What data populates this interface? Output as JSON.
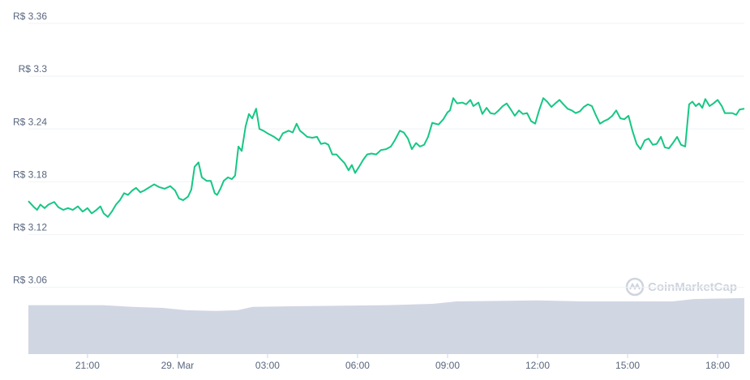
{
  "chart_data": {
    "type": "line",
    "yticks": [
      {
        "value": 3.06,
        "label": "R$ 3.06"
      },
      {
        "value": 3.12,
        "label": "R$ 3.12"
      },
      {
        "value": 3.18,
        "label": "R$ 3.18"
      },
      {
        "value": 3.24,
        "label": "R$ 3.24"
      },
      {
        "value": 3.3,
        "label": "R$ 3.3"
      },
      {
        "value": 3.36,
        "label": "R$ 3.36"
      }
    ],
    "ylim": [
      2.985,
      3.37
    ],
    "xlim": [
      19.03,
      42.89
    ],
    "xticks": [
      {
        "value": 21,
        "label": "21:00"
      },
      {
        "value": 24,
        "label": "29. Mar"
      },
      {
        "value": 27,
        "label": "03:00"
      },
      {
        "value": 30,
        "label": "06:00"
      },
      {
        "value": 33,
        "label": "09:00"
      },
      {
        "value": 36,
        "label": "12:00"
      },
      {
        "value": 39,
        "label": "15:00"
      },
      {
        "value": 42,
        "label": "18:00"
      }
    ],
    "grid": true,
    "watermark": "CoinMarketCap",
    "series": [
      {
        "color": "#16c784",
        "x": [
          19.03,
          19.22,
          19.32,
          19.43,
          19.57,
          19.7,
          19.89,
          20.03,
          20.19,
          20.35,
          20.51,
          20.68,
          20.84,
          21.0,
          21.14,
          21.3,
          21.43,
          21.54,
          21.68,
          21.81,
          21.95,
          22.08,
          22.22,
          22.35,
          22.49,
          22.62,
          22.76,
          22.89,
          23.03,
          23.22,
          23.38,
          23.57,
          23.76,
          23.92,
          24.05,
          24.19,
          24.35,
          24.46,
          24.57,
          24.7,
          24.81,
          24.97,
          25.11,
          25.24,
          25.32,
          25.43,
          25.54,
          25.68,
          25.81,
          25.92,
          26.03,
          26.14,
          26.27,
          26.38,
          26.49,
          26.62,
          26.73,
          26.86,
          27.0,
          27.22,
          27.38,
          27.51,
          27.7,
          27.84,
          27.97,
          28.08,
          28.19,
          28.32,
          28.49,
          28.65,
          28.78,
          28.92,
          29.03,
          29.16,
          29.3,
          29.43,
          29.57,
          29.7,
          29.81,
          29.92,
          30.05,
          30.19,
          30.32,
          30.46,
          30.62,
          30.78,
          30.95,
          31.11,
          31.24,
          31.41,
          31.54,
          31.68,
          31.81,
          31.95,
          32.08,
          32.22,
          32.35,
          32.49,
          32.59,
          32.7,
          32.86,
          33.0,
          33.08,
          33.19,
          33.32,
          33.49,
          33.62,
          33.76,
          33.86,
          34.03,
          34.16,
          34.3,
          34.43,
          34.57,
          34.7,
          34.84,
          34.97,
          35.11,
          35.24,
          35.38,
          35.51,
          35.65,
          35.78,
          35.92,
          36.05,
          36.19,
          36.32,
          36.46,
          36.59,
          36.73,
          36.86,
          37.0,
          37.14,
          37.27,
          37.41,
          37.54,
          37.68,
          37.81,
          37.95,
          38.08,
          38.22,
          38.35,
          38.49,
          38.62,
          38.76,
          38.89,
          39.03,
          39.16,
          39.3,
          39.43,
          39.57,
          39.7,
          39.84,
          39.97,
          40.11,
          40.24,
          40.38,
          40.51,
          40.65,
          40.78,
          40.92,
          41.05,
          41.16,
          41.27,
          41.38,
          41.49,
          41.59,
          41.73,
          41.86,
          42.0,
          42.14,
          42.24,
          42.35,
          42.49,
          42.62,
          42.73,
          42.89
        ],
        "values": [
          3.158,
          3.151,
          3.148,
          3.154,
          3.15,
          3.154,
          3.157,
          3.151,
          3.148,
          3.15,
          3.148,
          3.152,
          3.146,
          3.15,
          3.144,
          3.148,
          3.152,
          3.144,
          3.14,
          3.146,
          3.154,
          3.159,
          3.167,
          3.165,
          3.17,
          3.173,
          3.168,
          3.17,
          3.173,
          3.177,
          3.174,
          3.172,
          3.175,
          3.17,
          3.161,
          3.159,
          3.163,
          3.171,
          3.197,
          3.202,
          3.185,
          3.181,
          3.181,
          3.167,
          3.165,
          3.172,
          3.181,
          3.185,
          3.183,
          3.187,
          3.22,
          3.215,
          3.243,
          3.257,
          3.252,
          3.263,
          3.24,
          3.238,
          3.235,
          3.231,
          3.227,
          3.235,
          3.238,
          3.236,
          3.246,
          3.238,
          3.235,
          3.231,
          3.23,
          3.231,
          3.223,
          3.224,
          3.222,
          3.211,
          3.211,
          3.206,
          3.201,
          3.193,
          3.199,
          3.19,
          3.197,
          3.205,
          3.211,
          3.212,
          3.211,
          3.216,
          3.217,
          3.22,
          3.227,
          3.238,
          3.236,
          3.229,
          3.217,
          3.224,
          3.22,
          3.222,
          3.231,
          3.247,
          3.246,
          3.245,
          3.251,
          3.259,
          3.261,
          3.275,
          3.269,
          3.27,
          3.268,
          3.273,
          3.266,
          3.27,
          3.257,
          3.264,
          3.258,
          3.257,
          3.261,
          3.266,
          3.269,
          3.262,
          3.255,
          3.261,
          3.257,
          3.258,
          3.249,
          3.246,
          3.261,
          3.275,
          3.271,
          3.265,
          3.269,
          3.273,
          3.268,
          3.263,
          3.261,
          3.258,
          3.26,
          3.265,
          3.268,
          3.266,
          3.255,
          3.246,
          3.249,
          3.251,
          3.255,
          3.261,
          3.252,
          3.251,
          3.255,
          3.238,
          3.223,
          3.217,
          3.227,
          3.229,
          3.222,
          3.223,
          3.231,
          3.219,
          3.218,
          3.224,
          3.231,
          3.222,
          3.22,
          3.268,
          3.271,
          3.266,
          3.269,
          3.264,
          3.274,
          3.266,
          3.269,
          3.273,
          3.266,
          3.258,
          3.258,
          3.258,
          3.256,
          3.262,
          3.263
        ]
      }
    ],
    "y2lim": [
      0,
      100
    ],
    "volume": {
      "axis": "y2",
      "color": "#d1d6e3",
      "x": [
        19.03,
        21.5,
        22.5,
        23.5,
        24.3,
        25.3,
        26.0,
        26.5,
        28.0,
        31.0,
        32.5,
        33.3,
        36.0,
        37.5,
        39.0,
        40.5,
        41.2,
        42.89
      ],
      "values": [
        14.2,
        14.2,
        13.7,
        13.4,
        12.7,
        12.5,
        12.7,
        13.7,
        13.9,
        14.2,
        14.6,
        15.3,
        15.6,
        15.3,
        15.3,
        15.3,
        16.0,
        16.3
      ]
    }
  }
}
